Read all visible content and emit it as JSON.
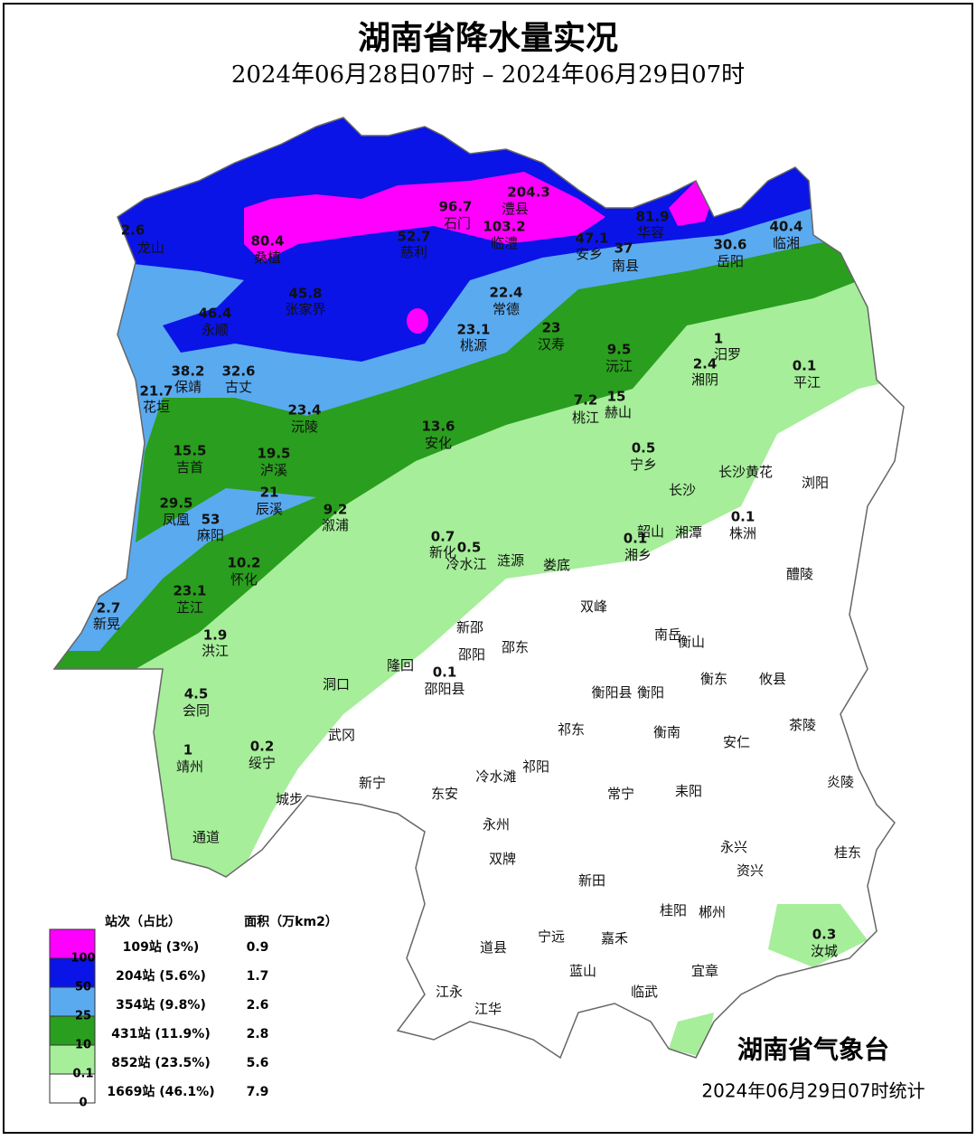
{
  "header": {
    "title": "湖南省降水量实况",
    "subtitle": "2024年06月28日07时 – 2024年06月29日07时"
  },
  "stations": [
    {
      "value": 2.6,
      "name": "龙山"
    },
    {
      "value": 80.4,
      "name": "桑植",
      "color": "#ffffff"
    },
    {
      "value": 96.7,
      "name": "石门",
      "color": "#ffffff"
    },
    {
      "value": 204.3,
      "name": "澧县",
      "color": "#ff2020"
    },
    {
      "value": 52.7,
      "name": "慈利",
      "color": "#ffffff"
    },
    {
      "value": 103.2,
      "name": "临澧",
      "color": "#ffffff"
    },
    {
      "value": 47.1,
      "name": "安乡"
    },
    {
      "value": 81.9,
      "name": "华容",
      "color": "#ffffff"
    },
    {
      "value": 37,
      "name": "南县"
    },
    {
      "value": 30.6,
      "name": "岳阳"
    },
    {
      "value": 40.4,
      "name": "临湘"
    },
    {
      "value": 46.4,
      "name": "永顺"
    },
    {
      "value": 45.8,
      "name": "张家界"
    },
    {
      "value": 22.4,
      "name": "常德"
    },
    {
      "value": 23.1,
      "name": "桃源"
    },
    {
      "value": 23,
      "name": "汉寿"
    },
    {
      "value": 9.5,
      "name": "沅江"
    },
    {
      "value": 1,
      "name": "汨罗"
    },
    {
      "value": 2.4,
      "name": "湘阴"
    },
    {
      "value": 0.1,
      "name": "平江"
    },
    {
      "value": 38.2,
      "name": "保靖"
    },
    {
      "value": 32.6,
      "name": "古丈"
    },
    {
      "value": 21.7,
      "name": "花垣"
    },
    {
      "value": 23.4,
      "name": "沅陵"
    },
    {
      "value": 7.2,
      "name": "桃江"
    },
    {
      "value": 15,
      "name": "赫山"
    },
    {
      "value": 13.6,
      "name": "安化"
    },
    {
      "value": 15.5,
      "name": "吉首"
    },
    {
      "value": 19.5,
      "name": "泸溪"
    },
    {
      "value": 0.5,
      "name": "宁乡"
    },
    {
      "value": 29.5,
      "name": "凤凰"
    },
    {
      "value": 53,
      "name": "麻阳",
      "color": "#ffffff"
    },
    {
      "value": 21,
      "name": "辰溪"
    },
    {
      "value": 9.2,
      "name": "溆浦"
    },
    {
      "value": 0.1,
      "name": "株洲"
    },
    {
      "value": 0.7,
      "name": "新化"
    },
    {
      "value": 0.5,
      "name": "冷水江"
    },
    {
      "value": 0.1,
      "name": "湘乡"
    },
    {
      "value": 10.2,
      "name": "怀化"
    },
    {
      "value": 23.1,
      "name": "芷江"
    },
    {
      "value": 2.7,
      "name": "新晃"
    },
    {
      "value": 1.9,
      "name": "洪江"
    },
    {
      "value": 0.1,
      "name": "邵阳县"
    },
    {
      "value": 4.5,
      "name": "会同"
    },
    {
      "value": 1,
      "name": "靖州"
    },
    {
      "value": 0.2,
      "name": "绥宁"
    },
    {
      "value": 0.3,
      "name": "汝城"
    }
  ],
  "places": [
    "长沙",
    "长沙黄花",
    "浏阳",
    "涟源",
    "娄底",
    "韶山",
    "湘潭",
    "双峰",
    "醴陵",
    "新邵",
    "邵阳",
    "邵东",
    "南岳",
    "衡山",
    "隆回",
    "洞口",
    "衡阳县",
    "衡阳",
    "衡东",
    "攸县",
    "武冈",
    "祁东",
    "衡南",
    "茶陵",
    "安仁",
    "冷水滩",
    "祁阳",
    "新宁",
    "城步",
    "东安",
    "常宁",
    "耒阳",
    "炎陵",
    "永州",
    "通道",
    "双牌",
    "永兴",
    "资兴",
    "桂东",
    "新田",
    "桂阳",
    "郴州",
    "宁远",
    "道县",
    "嘉禾",
    "蓝山",
    "宜章",
    "临武",
    "江永",
    "江华"
  ],
  "legend": {
    "count_title": "站次（占比）",
    "area_title": "面积（万km2）",
    "items": [
      {
        "color": "#ff00ff",
        "label": "109站 (3%)",
        "area": 0.9
      },
      {
        "color": "#0a14e6",
        "label": "204站 (5.6%)",
        "area": 1.7
      },
      {
        "color": "#5aaaf0",
        "label": "354站 (9.8%)",
        "area": 2.6
      },
      {
        "color": "#2a9e1e",
        "label": "431站 (11.9%)",
        "area": 2.8
      },
      {
        "color": "#a6ee9a",
        "label": "852站 (23.5%)",
        "area": 5.6
      },
      {
        "color": "#ffffff",
        "label": "1669站 (46.1%)",
        "area": 7.9
      }
    ],
    "thresholds": [
      100,
      50,
      25,
      10,
      0.1,
      0
    ]
  },
  "footer": {
    "agency": "湖南省气象台",
    "stamp": "2024年06月29日07时统计"
  }
}
